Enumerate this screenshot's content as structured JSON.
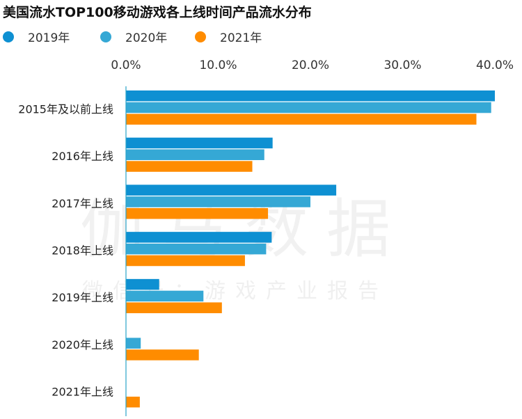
{
  "chart_data": {
    "type": "bar",
    "orientation": "horizontal",
    "title": "美国流水TOP100移动游戏各上线时间产品流水分布",
    "categories": [
      "2015年及以前上线",
      "2016年上线",
      "2017年上线",
      "2018年上线",
      "2019年上线",
      "2020年上线",
      "2021年上线"
    ],
    "series": [
      {
        "name": "2019年",
        "color": "#0E90D2",
        "values": [
          40.0,
          15.9,
          22.8,
          15.8,
          3.6,
          0.0,
          0.0
        ]
      },
      {
        "name": "2020年",
        "color": "#35A8D5",
        "values": [
          39.6,
          15.0,
          20.0,
          15.2,
          8.4,
          1.6,
          0.0
        ]
      },
      {
        "name": "2021年",
        "color": "#FF8C00",
        "values": [
          38.0,
          13.7,
          15.4,
          12.9,
          10.4,
          7.9,
          1.5
        ]
      }
    ],
    "xlim": [
      0,
      40
    ],
    "xticks": [
      "0.0%",
      "10.0%",
      "20.0%",
      "30.0%",
      "40.0%"
    ],
    "xtick_values": [
      0,
      10,
      20,
      30,
      40
    ],
    "legend_position": "top-left",
    "grid": false
  },
  "watermark": {
    "main": "伽马数据",
    "sub": "微信号：游戏产业报告"
  }
}
